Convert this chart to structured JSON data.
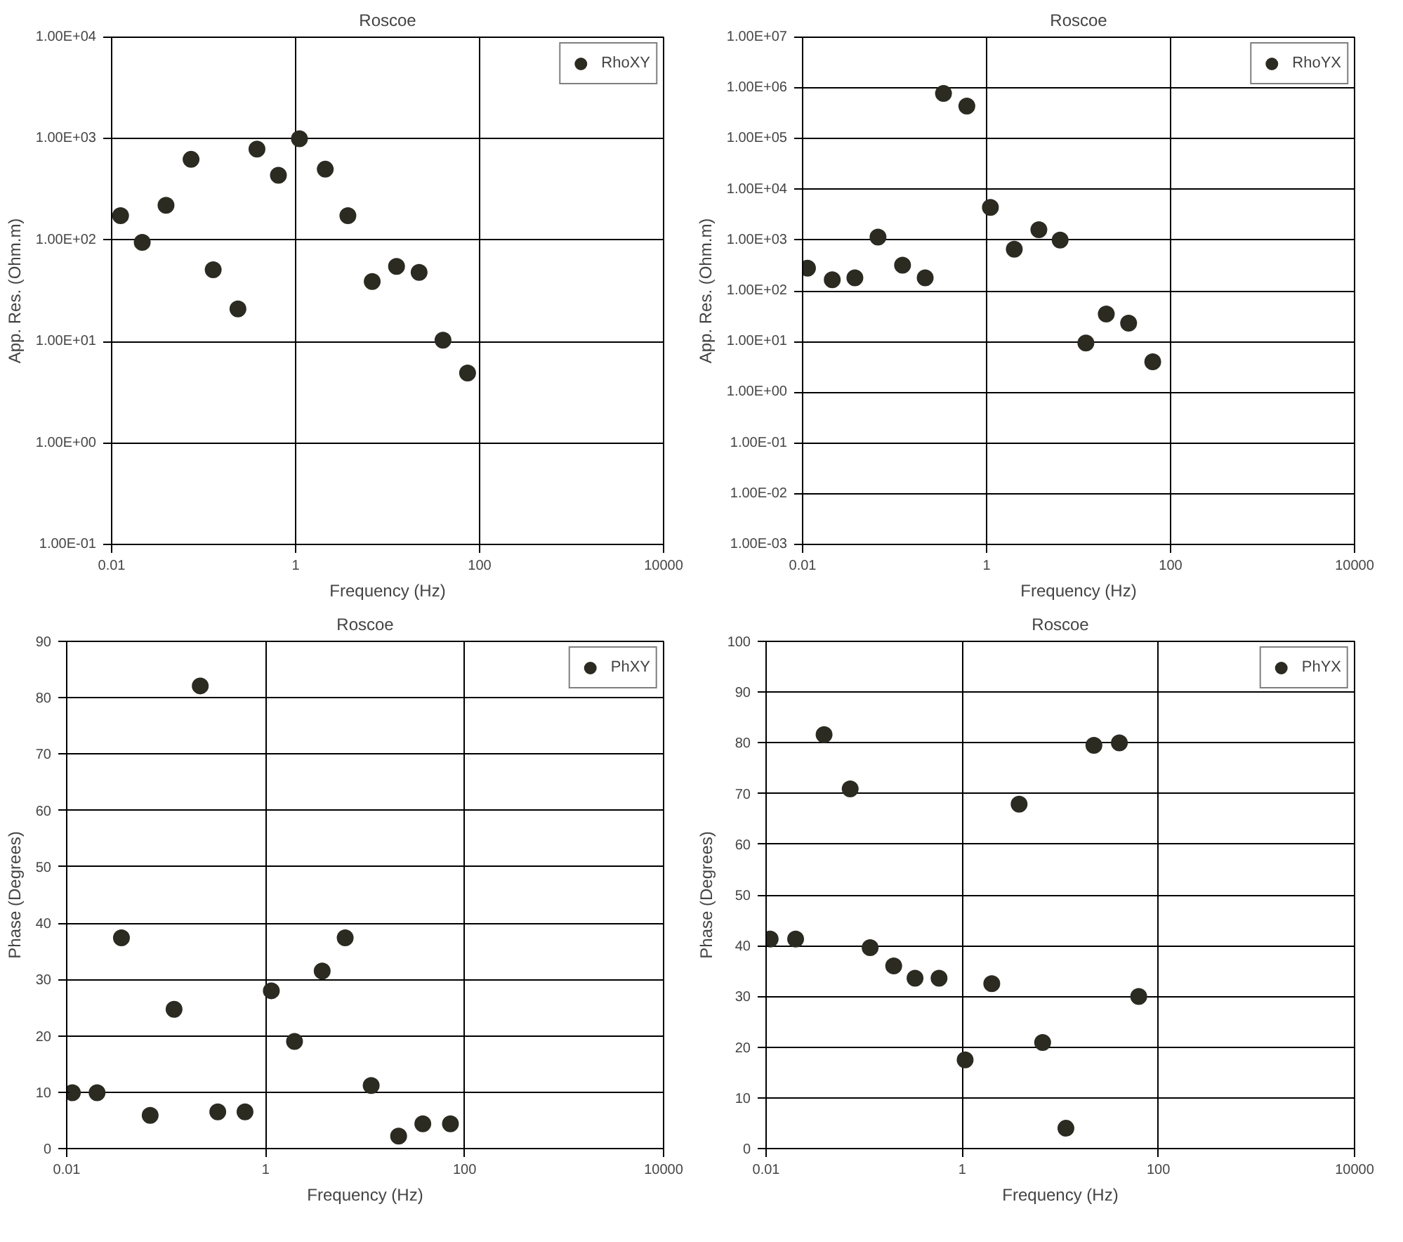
{
  "chart_data": [
    {
      "type": "scatter",
      "title": "Roscoe",
      "xlabel": "Frequency (Hz)",
      "ylabel": "App. Res. (Ohm.m)",
      "log": "xy",
      "grid": true,
      "legend": "top right",
      "marker": "circle",
      "xlim": [
        0.01,
        10000
      ],
      "xticks": [
        0.01,
        1,
        100,
        10000
      ],
      "ylim": [
        0.1,
        10000
      ],
      "yticks": [
        {
          "value": 0.1,
          "label": "1.00E-01"
        },
        {
          "value": 1,
          "label": "1.00E+00"
        },
        {
          "value": 10,
          "label": "1.00E+01"
        },
        {
          "value": 100,
          "label": "1.00E+02"
        },
        {
          "value": 1000,
          "label": "1.00E+03"
        },
        {
          "value": 10000,
          "label": "1.00E+04"
        }
      ],
      "series": [
        {
          "name": "RhoXY",
          "color": "#2b2b22",
          "x": [
            0.0125,
            0.0215,
            0.039,
            0.073,
            0.127,
            0.236,
            0.38,
            0.65,
            1.1,
            2.1,
            3.7,
            6.8,
            12.5,
            22,
            40,
            74
          ],
          "values": [
            174,
            95,
            220,
            625,
            51,
            21,
            790,
            435,
            1000,
            500,
            174,
            39,
            55,
            48,
            10.3,
            4.9
          ]
        }
      ]
    },
    {
      "type": "scatter",
      "title": "Roscoe",
      "xlabel": "Frequency (Hz)",
      "ylabel": "App. Res. (Ohm.m)",
      "log": "xy",
      "grid": true,
      "legend": "top right",
      "marker": "circle",
      "xlim": [
        0.01,
        10000
      ],
      "xticks": [
        0.01,
        1,
        100,
        10000
      ],
      "ylim": [
        0.001,
        10000000
      ],
      "yticks": [
        {
          "value": 0.001,
          "label": "1.00E-03"
        },
        {
          "value": 0.01,
          "label": "1.00E-02"
        },
        {
          "value": 0.1,
          "label": "1.00E-01"
        },
        {
          "value": 1,
          "label": "1.00E+00"
        },
        {
          "value": 10,
          "label": "1.00E+01"
        },
        {
          "value": 100,
          "label": "1.00E+02"
        },
        {
          "value": 1000,
          "label": "1.00E+03"
        },
        {
          "value": 10000,
          "label": "1.00E+04"
        },
        {
          "value": 100000,
          "label": "1.00E+05"
        },
        {
          "value": 1000000,
          "label": "1.00E+06"
        },
        {
          "value": 10000000,
          "label": "1.00E+07"
        }
      ],
      "series": [
        {
          "name": "RhoYX",
          "color": "#2b2b22",
          "x": [
            0.0113,
            0.021,
            0.037,
            0.066,
            0.122,
            0.215,
            0.34,
            0.61,
            1.1,
            2,
            3.7,
            6.3,
            12,
            20,
            35,
            64
          ],
          "values": [
            280,
            165,
            180,
            1150,
            320,
            180,
            780000,
            440000,
            4400,
            660,
            1600,
            1000,
            9.4,
            35,
            23,
            4
          ]
        }
      ]
    },
    {
      "type": "scatter",
      "title": "Roscoe",
      "xlabel": "Frequency (Hz)",
      "ylabel": "Phase (Degrees)",
      "log": "x",
      "grid": true,
      "legend": "top right",
      "marker": "circle",
      "xlim": [
        0.01,
        10000
      ],
      "xticks": [
        0.01,
        1,
        100,
        10000
      ],
      "ylim": [
        0,
        90
      ],
      "yticks": [
        0,
        10,
        20,
        30,
        40,
        50,
        60,
        70,
        80,
        90
      ],
      "series": [
        {
          "name": "PhXY",
          "color": "#2b2b22",
          "x": [
            0.0114,
            0.0202,
            0.0355,
            0.069,
            0.12,
            0.22,
            0.33,
            0.62,
            1.14,
            1.95,
            3.7,
            6.3,
            11.5,
            21.7,
            38,
            72
          ],
          "values": [
            9.9,
            9.9,
            37.4,
            5.9,
            24.7,
            82.1,
            6.5,
            6.5,
            28,
            19,
            31.5,
            37.4,
            11.2,
            2.2,
            4.4,
            4.4
          ]
        }
      ]
    },
    {
      "type": "scatter",
      "title": "Roscoe",
      "xlabel": "Frequency (Hz)",
      "ylabel": "Phase (Degrees)",
      "log": "x",
      "grid": true,
      "legend": "top right",
      "marker": "circle",
      "xlim": [
        0.01,
        10000
      ],
      "xticks": [
        0.01,
        1,
        100,
        10000
      ],
      "ylim": [
        0,
        100
      ],
      "yticks": [
        0,
        10,
        20,
        30,
        40,
        50,
        60,
        70,
        80,
        90,
        100
      ],
      "series": [
        {
          "name": "PhYX",
          "color": "#2b2b22",
          "x": [
            0.011,
            0.02,
            0.039,
            0.072,
            0.115,
            0.2,
            0.33,
            0.58,
            1.07,
            2,
            3.8,
            6.6,
            11.4,
            22,
            40,
            63
          ],
          "values": [
            41.3,
            41.3,
            81.6,
            70.9,
            39.6,
            36,
            33.6,
            33.6,
            17.5,
            32.5,
            67.9,
            20.9,
            4,
            79.5,
            80,
            30
          ]
        }
      ]
    }
  ]
}
